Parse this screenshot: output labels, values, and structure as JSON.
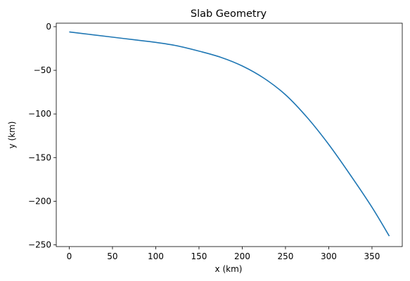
{
  "chart_data": {
    "type": "line",
    "title": "Slab Geometry",
    "xlabel": "x (km)",
    "ylabel": "y (km)",
    "xlim": [
      -15,
      385
    ],
    "ylim": [
      -252,
      4
    ],
    "xticks": [
      0,
      50,
      100,
      150,
      200,
      250,
      300,
      350
    ],
    "yticks": [
      0,
      -50,
      -100,
      -150,
      -200,
      -250
    ],
    "grid": false,
    "series": [
      {
        "color": "#1f77b4",
        "x": [
          0,
          25,
          50,
          75,
          100,
          125,
          150,
          175,
          200,
          225,
          250,
          275,
          300,
          325,
          350,
          370
        ],
        "y": [
          -6,
          -9,
          -12,
          -15,
          -18,
          -22,
          -28,
          -35,
          -45,
          -59,
          -78,
          -104,
          -135,
          -170,
          -207,
          -240
        ]
      }
    ]
  }
}
